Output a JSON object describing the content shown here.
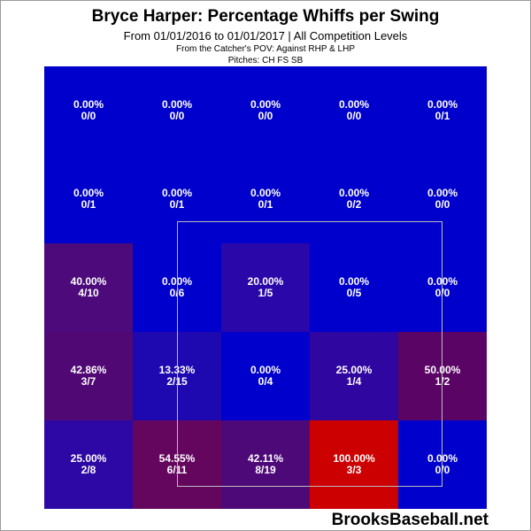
{
  "chart_data": {
    "type": "heatmap",
    "title": "Bryce Harper: Percentage Whiffs per Swing",
    "subtitle": "From 01/01/2016 to 01/01/2017 | All Competition Levels",
    "perspective": "From the Catcher's POV:   Against RHP & LHP",
    "pitches": "Pitches:  CH  FS  SB",
    "watermark": "BrooksBaseball.net",
    "rows": 5,
    "cols": 5,
    "strike_zone": "inner 3x3 (rows 2-4, cols 2-4)",
    "cells": [
      [
        {
          "pct": "0.00%",
          "count": "0/0",
          "color": "#0000cc"
        },
        {
          "pct": "0.00%",
          "count": "0/0",
          "color": "#0000cc"
        },
        {
          "pct": "0.00%",
          "count": "0/0",
          "color": "#0000cc"
        },
        {
          "pct": "0.00%",
          "count": "0/0",
          "color": "#0000cc"
        },
        {
          "pct": "0.00%",
          "count": "0/1",
          "color": "#0000cc"
        }
      ],
      [
        {
          "pct": "0.00%",
          "count": "0/1",
          "color": "#0000cc"
        },
        {
          "pct": "0.00%",
          "count": "0/1",
          "color": "#0000cc"
        },
        {
          "pct": "0.00%",
          "count": "0/1",
          "color": "#0000cc"
        },
        {
          "pct": "0.00%",
          "count": "0/2",
          "color": "#0000cc"
        },
        {
          "pct": "0.00%",
          "count": "0/0",
          "color": "#0000cc"
        }
      ],
      [
        {
          "pct": "40.00%",
          "count": "4/10",
          "color": "#4c0a7a"
        },
        {
          "pct": "0.00%",
          "count": "0/6",
          "color": "#0000cc"
        },
        {
          "pct": "20.00%",
          "count": "1/5",
          "color": "#2a07a8"
        },
        {
          "pct": "0.00%",
          "count": "0/5",
          "color": "#0000cc"
        },
        {
          "pct": "0.00%",
          "count": "0/0",
          "color": "#0000cc"
        }
      ],
      [
        {
          "pct": "42.86%",
          "count": "3/7",
          "color": "#500874"
        },
        {
          "pct": "13.33%",
          "count": "2/15",
          "color": "#1e08b0"
        },
        {
          "pct": "0.00%",
          "count": "0/4",
          "color": "#0000cc"
        },
        {
          "pct": "25.00%",
          "count": "1/4",
          "color": "#3006a0"
        },
        {
          "pct": "50.00%",
          "count": "1/2",
          "color": "#5a0466"
        }
      ],
      [
        {
          "pct": "25.00%",
          "count": "2/8",
          "color": "#2e08a4"
        },
        {
          "pct": "54.55%",
          "count": "6/11",
          "color": "#64065e"
        },
        {
          "pct": "42.11%",
          "count": "8/19",
          "color": "#4e0978"
        },
        {
          "pct": "100.00%",
          "count": "3/3",
          "color": "#cc0000"
        },
        {
          "pct": "0.00%",
          "count": "0/0",
          "color": "#0000cc"
        }
      ]
    ]
  }
}
